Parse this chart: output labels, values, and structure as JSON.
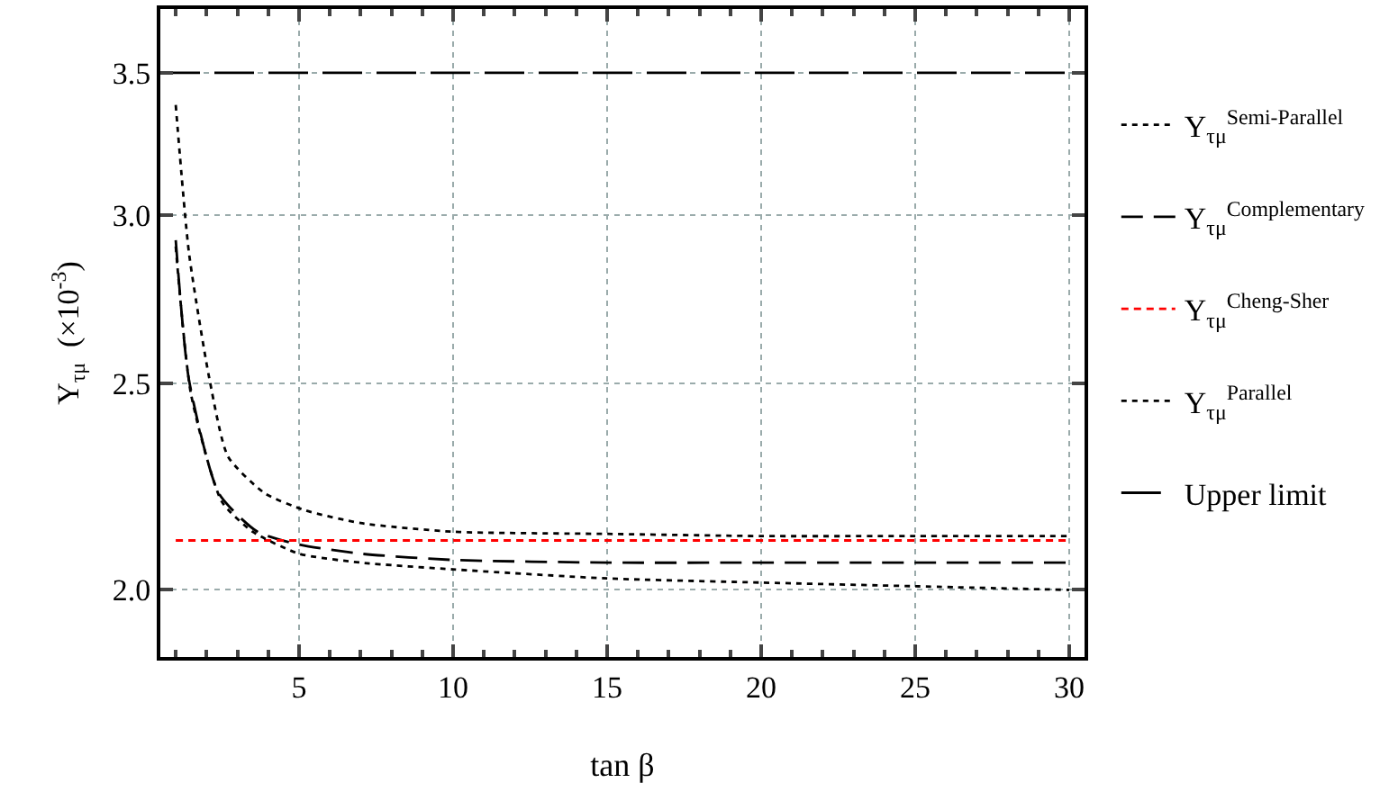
{
  "chart_data": {
    "type": "line",
    "xlabel": "tan β",
    "ylabel": "Y$_{τμ}$  (×10$^{-3}$)",
    "xlim": [
      0.5,
      30.5
    ],
    "xticks": [
      5,
      10,
      15,
      20,
      25,
      30
    ],
    "ylim": [
      1.86,
      3.75
    ],
    "yticks": [
      {
        "value": 2,
        "label": "2.0"
      },
      {
        "value": 2.5,
        "label": "2.5"
      },
      {
        "value": 3,
        "label": "3.0"
      },
      {
        "value": 3.5,
        "label": "3.5"
      }
    ],
    "log": "y",
    "grid": true,
    "legend": "right",
    "marker": "none",
    "series": [
      {
        "name": "Y$_{τμ}$$^{Semi-Parallel}$",
        "color": "#000000",
        "line_style": "dotted",
        "x": [
          1,
          1.43,
          2.1,
          2.7,
          3.9,
          5.2,
          7,
          10,
          15,
          20,
          25,
          30
        ],
        "values": [
          3.38,
          2.88,
          2.51,
          2.31,
          2.22,
          2.18,
          2.15,
          2.13,
          2.125,
          2.12,
          2.12,
          2.12
        ]
      },
      {
        "name": "Y$_{τμ}$$^{Complementary}$",
        "color": "#000000",
        "line_style": "dashed",
        "x": [
          1,
          1.43,
          2.4,
          3.65,
          5.05,
          7,
          10,
          15,
          20,
          25,
          30
        ],
        "values": [
          2.92,
          2.51,
          2.22,
          2.13,
          2.1,
          2.08,
          2.066,
          2.06,
          2.06,
          2.06,
          2.06
        ]
      },
      {
        "name": "Y$_{τμ}$$^{Cheng-Sher}$",
        "color": "#ff0000",
        "line_style": "dashed",
        "x": [
          1,
          30
        ],
        "values": [
          2.11,
          2.11
        ]
      },
      {
        "name": "Y$_{τμ}$$^{Parallel}$",
        "color": "#000000",
        "line_style": "dotted",
        "x": [
          1,
          1.5,
          2.5,
          3.5,
          5,
          7,
          10,
          15,
          20,
          25,
          30
        ],
        "values": [
          2.9,
          2.47,
          2.2,
          2.13,
          2.08,
          2.06,
          2.045,
          2.025,
          2.016,
          2.008,
          2.0
        ]
      },
      {
        "name": "Upper limit",
        "color": "#000000",
        "line_style": "dashed",
        "x": [
          0.5,
          30.5
        ],
        "values": [
          3.5,
          3.5
        ]
      }
    ]
  }
}
